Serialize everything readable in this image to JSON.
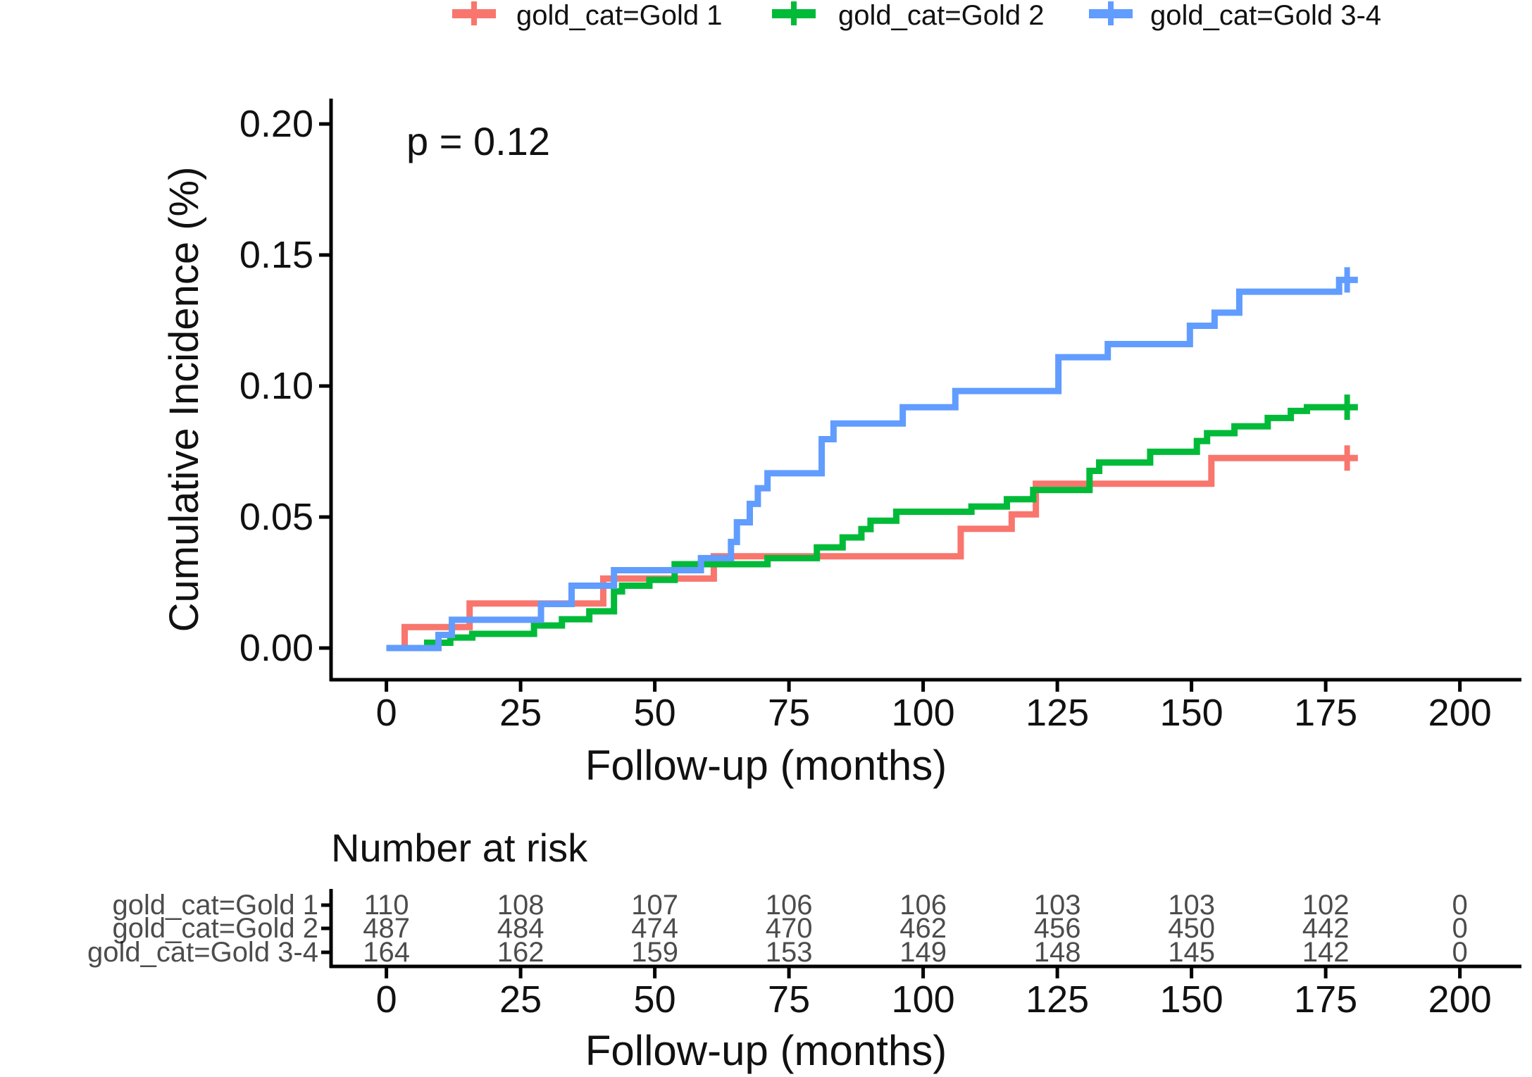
{
  "annotation": {
    "p_value": "p = 0.12"
  },
  "legend": {
    "items": [
      {
        "label": "gold_cat=Gold 1",
        "color": "#F8766D",
        "marker": "plus-cross-icon"
      },
      {
        "label": "gold_cat=Gold 2",
        "color": "#00BA38",
        "marker": "plus-cross-icon"
      },
      {
        "label": "gold_cat=Gold 3-4",
        "color": "#619CFF",
        "marker": "plus-cross-icon"
      }
    ]
  },
  "chart_data": {
    "type": "line",
    "subtype": "step-cumulative-incidence",
    "title": "",
    "xlabel": "Follow-up (months)",
    "ylabel": "Cumulative Incidence (%)",
    "xlim": [
      0,
      200
    ],
    "ylim": [
      0,
      0.2
    ],
    "grid": false,
    "legend_position": "top",
    "x_ticks": [
      0,
      25,
      50,
      75,
      100,
      125,
      150,
      175,
      200
    ],
    "y_ticks": [
      {
        "value": 0.0,
        "label": "0.00"
      },
      {
        "value": 0.05,
        "label": "0.05"
      },
      {
        "value": 0.1,
        "label": "0.10"
      },
      {
        "value": 0.15,
        "label": "0.15"
      },
      {
        "value": 0.2,
        "label": "0.20"
      }
    ],
    "series": [
      {
        "name": "gold_cat=Gold 1",
        "color": "#F8766D",
        "start": [
          0,
          0
        ],
        "steps": [
          [
            3.4,
            0.008
          ],
          [
            15.5,
            0.017
          ],
          [
            40.4,
            0.0265
          ],
          [
            61,
            0.035
          ],
          [
            107,
            0.0455
          ],
          [
            116.5,
            0.051
          ],
          [
            121,
            0.0627
          ],
          [
            153.7,
            0.0725
          ]
        ],
        "end_month": 181,
        "censor_month": 179,
        "final_value": 0.0725
      },
      {
        "name": "gold_cat=Gold 2",
        "color": "#00BA38",
        "start": [
          0,
          0
        ],
        "steps": [
          [
            7.6,
            0.002
          ],
          [
            11.9,
            0.004
          ],
          [
            16,
            0.0054
          ],
          [
            27.5,
            0.0086
          ],
          [
            32.7,
            0.011
          ],
          [
            37.8,
            0.014
          ],
          [
            42.4,
            0.0216
          ],
          [
            43.9,
            0.0238
          ],
          [
            49,
            0.026
          ],
          [
            53.7,
            0.032
          ],
          [
            71,
            0.0343
          ],
          [
            80.2,
            0.0384
          ],
          [
            85,
            0.0422
          ],
          [
            88.5,
            0.0454
          ],
          [
            90.2,
            0.0486
          ],
          [
            95,
            0.052
          ],
          [
            109,
            0.054
          ],
          [
            115.6,
            0.0568
          ],
          [
            120.5,
            0.0603
          ],
          [
            131,
            0.0676
          ],
          [
            132.8,
            0.0708
          ],
          [
            142.3,
            0.0749
          ],
          [
            151,
            0.079
          ],
          [
            152.9,
            0.082
          ],
          [
            158,
            0.0846
          ],
          [
            164.2,
            0.0878
          ],
          [
            168.5,
            0.0905
          ],
          [
            171.5,
            0.0919
          ]
        ],
        "end_month": 181,
        "censor_month": 179,
        "final_value": 0.0919
      },
      {
        "name": "gold_cat=Gold 3-4",
        "color": "#619CFF",
        "start": [
          0,
          0
        ],
        "steps": [
          [
            9.7,
            0.005
          ],
          [
            12.2,
            0.0108
          ],
          [
            28.8,
            0.0168
          ],
          [
            34.5,
            0.0238
          ],
          [
            42.4,
            0.0297
          ],
          [
            58.6,
            0.0343
          ],
          [
            64.2,
            0.0405
          ],
          [
            65.3,
            0.048
          ],
          [
            67.7,
            0.055
          ],
          [
            69.2,
            0.061
          ],
          [
            71,
            0.0667
          ],
          [
            81.1,
            0.0797
          ],
          [
            83.3,
            0.0857
          ],
          [
            96.2,
            0.0919
          ],
          [
            106,
            0.0981
          ],
          [
            125.2,
            0.111
          ],
          [
            134.4,
            0.116
          ],
          [
            149.7,
            0.123
          ],
          [
            154.3,
            0.128
          ],
          [
            158.9,
            0.136
          ],
          [
            177.5,
            0.1405
          ]
        ],
        "end_month": 181,
        "censor_month": 179,
        "final_value": 0.1405
      }
    ]
  },
  "risk_table": {
    "heading": "Number at risk",
    "xlabel": "Follow-up (months)",
    "x_ticks": [
      0,
      25,
      50,
      75,
      100,
      125,
      150,
      175,
      200
    ],
    "rows": [
      {
        "label": "gold_cat=Gold 1",
        "color": "#F8766D",
        "values": [
          110,
          108,
          107,
          106,
          106,
          103,
          103,
          102,
          0
        ]
      },
      {
        "label": "gold_cat=Gold 2",
        "color": "#00BA38",
        "values": [
          487,
          484,
          474,
          470,
          462,
          456,
          450,
          442,
          0
        ]
      },
      {
        "label": "gold_cat=Gold 3-4",
        "color": "#619CFF",
        "values": [
          164,
          162,
          159,
          153,
          149,
          148,
          145,
          142,
          0
        ]
      }
    ]
  }
}
